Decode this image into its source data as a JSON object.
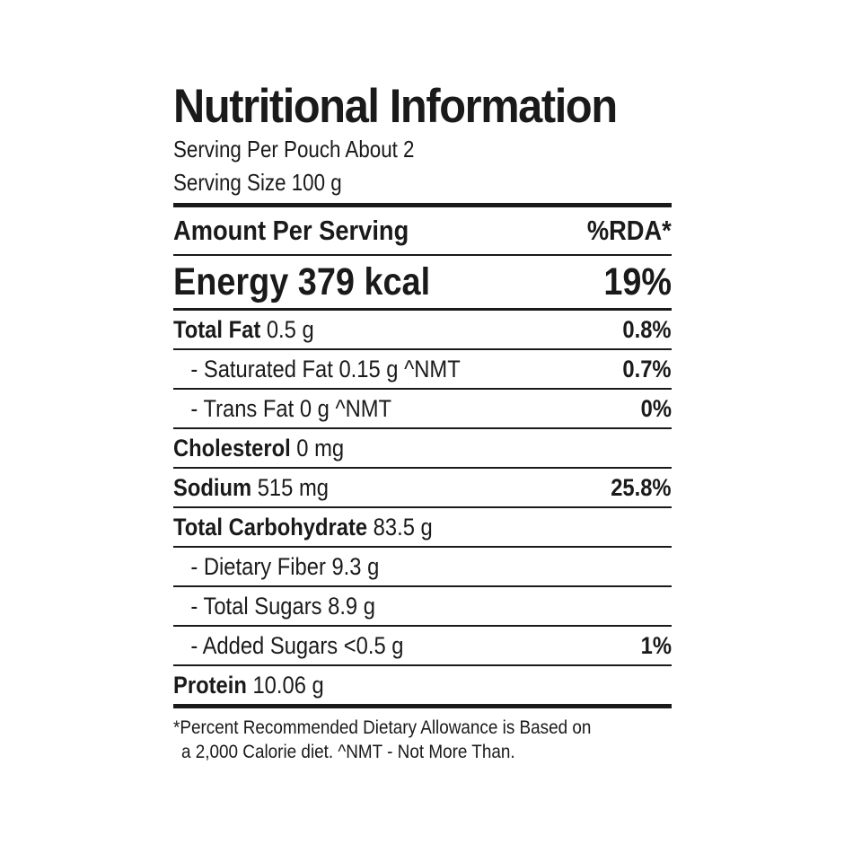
{
  "label": {
    "title": "Nutritional Information",
    "servings_per_pouch": "Serving Per Pouch About 2",
    "serving_size": "Serving Size 100 g",
    "header_left": "Amount Per Serving",
    "header_right": "%RDA*",
    "energy_left": "Energy 379 kcal",
    "energy_right": "19%",
    "rows": [
      {
        "name": "Total Fat",
        "amount": " 0.5 g",
        "rda": "0.8%"
      },
      {
        "name": "- Saturated Fat 0.15 g  ^NMT",
        "amount": "",
        "rda": "0.7%"
      },
      {
        "name": "- Trans Fat 0 g  ^NMT",
        "amount": "",
        "rda": "0%"
      },
      {
        "name": "Cholesterol",
        "amount": " 0 mg",
        "rda": ""
      },
      {
        "name": "Sodium",
        "amount": " 515 mg",
        "rda": "25.8%"
      },
      {
        "name": "Total Carbohydrate",
        "amount": " 83.5 g",
        "rda": ""
      },
      {
        "name": "- Dietary Fiber 9.3 g",
        "amount": "",
        "rda": ""
      },
      {
        "name": "- Total Sugars 8.9 g",
        "amount": "",
        "rda": ""
      },
      {
        "name": "- Added Sugars <0.5 g",
        "amount": "",
        "rda": "1%"
      },
      {
        "name": "Protein",
        "amount": " 10.06 g",
        "rda": ""
      }
    ],
    "footnote_line1": "*Percent Recommended Dietary Allowance is Based on",
    "footnote_line2": "a 2,000 Calorie diet.  ^NMT - Not More Than."
  }
}
